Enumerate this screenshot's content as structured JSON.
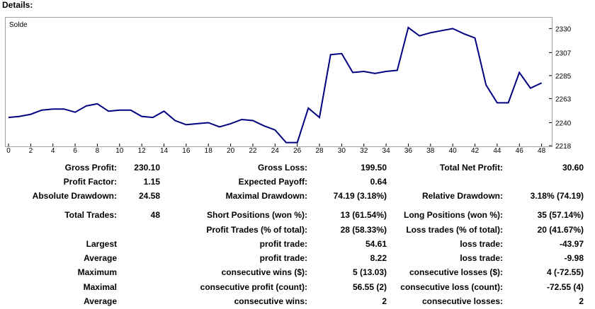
{
  "window": {
    "title": "Details:"
  },
  "chart_data": {
    "type": "line",
    "series_label": "Solde",
    "x": [
      0,
      1,
      2,
      3,
      4,
      5,
      6,
      7,
      8,
      9,
      10,
      11,
      12,
      13,
      14,
      15,
      16,
      17,
      18,
      19,
      20,
      21,
      22,
      23,
      24,
      25,
      26,
      27,
      28,
      29,
      30,
      31,
      32,
      33,
      34,
      35,
      36,
      37,
      38,
      39,
      40,
      41,
      42,
      43,
      44,
      45,
      46,
      47,
      48
    ],
    "values": [
      2245,
      2246,
      2248,
      2252,
      2253,
      2253,
      2250,
      2256,
      2258,
      2251,
      2252,
      2252,
      2246,
      2245,
      2251,
      2242,
      2238,
      2239,
      2240,
      2236,
      2239,
      2243,
      2242,
      2237,
      2233,
      2221,
      2221,
      2254,
      2245,
      2305,
      2306,
      2288,
      2289,
      2287,
      2289,
      2290,
      2331,
      2323,
      2326,
      2328,
      2330,
      2325,
      2321,
      2276,
      2259,
      2259,
      2288,
      2273,
      2278
    ],
    "x_ticks": [
      "0",
      "2",
      "4",
      "6",
      "8",
      "10",
      "12",
      "14",
      "16",
      "18",
      "20",
      "22",
      "24",
      "26",
      "28",
      "30",
      "32",
      "34",
      "36",
      "38",
      "40",
      "42",
      "44",
      "46",
      "48"
    ],
    "y_ticks": [
      "2330",
      "2307",
      "2285",
      "2263",
      "2240",
      "2218"
    ],
    "ylim": [
      2218,
      2337
    ],
    "xlim": [
      0,
      48.6
    ],
    "line_color": "#000080"
  },
  "stats": {
    "row1": {
      "l1": "Gross Profit:",
      "v1": "230.10",
      "l2": "Gross Loss:",
      "v2": "199.50",
      "l3": "Total Net Profit:",
      "v3": "30.60"
    },
    "row2": {
      "l1": "Profit Factor:",
      "v1": "1.15",
      "l2": "Expected Payoff:",
      "v2": "0.64"
    },
    "row3": {
      "l1": "Absolute Drawdown:",
      "v1": "24.58",
      "l2": "Maximal Drawdown:",
      "v2": "74.19 (3.18%)",
      "l3": "Relative Drawdown:",
      "v3": "3.18% (74.19)"
    },
    "row4": {
      "l1": "Total Trades:",
      "v1": "48",
      "l2": "Short Positions (won %):",
      "v2": "13 (61.54%)",
      "l3": "Long Positions (won %):",
      "v3": "35 (57.14%)"
    },
    "row5": {
      "l2": "Profit Trades (% of total):",
      "v2": "28 (58.33%)",
      "l3": "Loss trades (% of total):",
      "v3": "20 (41.67%)"
    },
    "row6": {
      "l1": "Largest",
      "l2": "profit trade:",
      "v2": "54.61",
      "l3": "loss trade:",
      "v3": "-43.97"
    },
    "row7": {
      "l1": "Average",
      "l2": "profit trade:",
      "v2": "8.22",
      "l3": "loss trade:",
      "v3": "-9.98"
    },
    "row8": {
      "l1": "Maximum",
      "l2": "consecutive wins ($):",
      "v2": "5 (13.03)",
      "l3": "consecutive losses ($):",
      "v3": "4 (-72.55)"
    },
    "row9": {
      "l1": "Maximal",
      "l2": "consecutive profit (count):",
      "v2": "56.55 (2)",
      "l3": "consecutive loss (count):",
      "v3": "-72.55 (4)"
    },
    "row10": {
      "l1": "Average",
      "l2": "consecutive wins:",
      "v2": "2",
      "l3": "consecutive losses:",
      "v3": "2"
    }
  }
}
